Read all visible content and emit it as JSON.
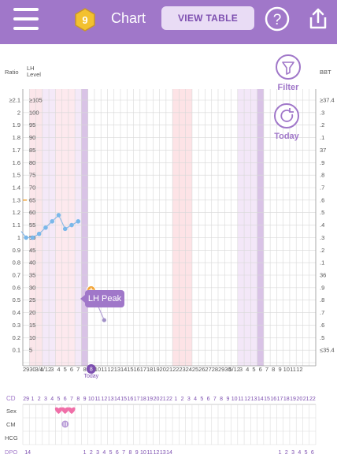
{
  "header": {
    "title": "Chart",
    "view_table": "VIEW TABLE",
    "badge_count": "9",
    "accent": "#a077c9"
  },
  "buttons": {
    "filter": "Filter",
    "today": "Today"
  },
  "axes": {
    "ratio_label": "Ratio",
    "lh_label": "LH\nLevel",
    "bbt_label": "BBT",
    "ratio_ticks": [
      "≥2.1",
      "2",
      "1.9",
      "1.8",
      "1.7",
      "1.6",
      "1.5",
      "1.4",
      "1.3",
      "1.2",
      "1.1",
      "1",
      "0.9",
      "0.8",
      "0.7",
      "0.6",
      "0.5",
      "0.4",
      "0.3",
      "0.2",
      "0.1"
    ],
    "lh_ticks": [
      "≥105",
      "100",
      "95",
      "90",
      "85",
      "80",
      "75",
      "70",
      "65",
      "60",
      "55",
      "50",
      "45",
      "40",
      "35",
      "30",
      "25",
      "20",
      "15",
      "10",
      "5"
    ],
    "bbt_ticks": [
      "≥37.4",
      ".3",
      ".2",
      ".1",
      "37",
      ".9",
      ".8",
      ".7",
      ".6",
      ".5",
      ".4",
      ".3",
      ".2",
      ".1",
      "36",
      ".9",
      ".8",
      ".7",
      ".6",
      ".5",
      "≤35.4"
    ],
    "date_labels": [
      "29",
      "30",
      "3/1",
      "4/12",
      "3",
      "4",
      "5",
      "6",
      "7",
      "8",
      "9",
      "10",
      "11",
      "12",
      "13",
      "14",
      "15",
      "16",
      "17",
      "18",
      "19",
      "20",
      "21",
      "22",
      "23",
      "24",
      "25",
      "26",
      "27",
      "28",
      "29",
      "30",
      "5/12",
      "3",
      "4",
      "5",
      "6",
      "7",
      "8",
      "9",
      "10",
      "11",
      "12"
    ],
    "today_index": 10,
    "today_date": "8",
    "today_label": "Today"
  },
  "rows": {
    "cd_label": "CD",
    "sex_label": "Sex",
    "cm_label": "CM",
    "hcg_label": "HCG",
    "dpo_label": "DPO",
    "cd_values": [
      "29",
      "1",
      "2",
      "3",
      "4",
      "5",
      "6",
      "7",
      "8",
      "9",
      "10",
      "11",
      "12",
      "13",
      "14",
      "15",
      "16",
      "17",
      "18",
      "19",
      "20",
      "21",
      "22",
      "1",
      "2",
      "3",
      "4",
      "5",
      "6",
      "7",
      "8",
      "9",
      "10",
      "11",
      "12",
      "13",
      "14",
      "15",
      "16",
      "17",
      "18",
      "19",
      "20",
      "21",
      "22"
    ],
    "sex_marks": [
      5,
      6,
      7
    ],
    "cm_marks": [
      6
    ],
    "dpo_left": "14",
    "dpo_values_a": [
      "1",
      "2",
      "3",
      "4",
      "5",
      "6",
      "7",
      "8",
      "9",
      "10",
      "11",
      "12",
      "13",
      "14"
    ],
    "dpo_values_b": [
      "1",
      "2",
      "3",
      "4",
      "5",
      "6"
    ]
  },
  "chart_data": {
    "type": "line",
    "series": [
      {
        "values": [
          1.05,
          1.0,
          1.0,
          1.03,
          1.08,
          1.13,
          1.18,
          1.07,
          1.1,
          1.13
        ]
      },
      {
        "values": [
          0.58,
          0.34
        ]
      }
    ],
    "annotation": "LH Peak",
    "ylim": [
      0,
      2.1
    ]
  }
}
